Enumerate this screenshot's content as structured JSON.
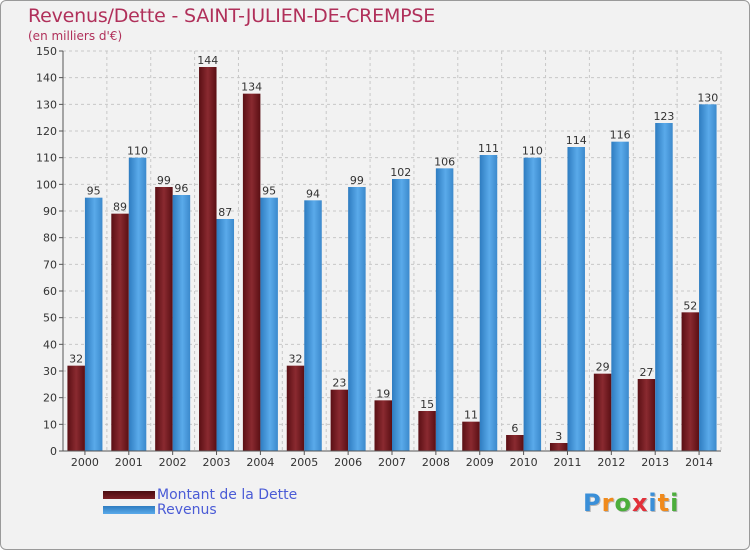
{
  "chart_data": {
    "type": "bar",
    "title": "Revenus/Dette - SAINT-JULIEN-DE-CREMPSE",
    "ylabel": "(en milliers d'€)",
    "xlabel": "",
    "ylim": [
      0,
      150
    ],
    "yticks": [
      0,
      10,
      20,
      30,
      40,
      50,
      60,
      70,
      80,
      90,
      100,
      110,
      120,
      130,
      140,
      150
    ],
    "grid": true,
    "legend_position": "bottom-left",
    "categories": [
      "2000",
      "2001",
      "2002",
      "2003",
      "2004",
      "2005",
      "2006",
      "2007",
      "2008",
      "2009",
      "2010",
      "2011",
      "2012",
      "2013",
      "2014"
    ],
    "series": [
      {
        "name": "Montant de la Dette",
        "color": "#7a1f25",
        "values": [
          32,
          89,
          99,
          144,
          134,
          32,
          23,
          19,
          15,
          11,
          6,
          3,
          29,
          27,
          52
        ]
      },
      {
        "name": "Revenus",
        "color": "#4f9fe0",
        "values": [
          95,
          110,
          96,
          87,
          95,
          94,
          99,
          102,
          106,
          111,
          110,
          114,
          116,
          123,
          130
        ]
      }
    ]
  },
  "logo": {
    "text": "Proxiti"
  }
}
